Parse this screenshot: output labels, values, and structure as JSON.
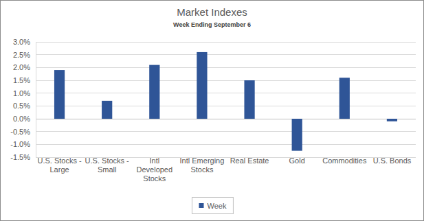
{
  "chart_data": {
    "type": "bar",
    "title": "Market Indexes",
    "subtitle": "Week Ending September 6",
    "categories": [
      "U.S. Stocks - Large",
      "U.S. Stocks - Small",
      "Intl Developed Stocks",
      "Intl Emerging Stocks",
      "Real Estate",
      "Gold",
      "Commodities",
      "U.S. Bonds"
    ],
    "series": [
      {
        "name": "Week",
        "color": "#2f5597",
        "values": [
          1.9,
          0.7,
          2.1,
          2.6,
          1.5,
          -1.25,
          1.6,
          -0.1
        ]
      }
    ],
    "ylim": [
      -1.5,
      3.0
    ],
    "yticks": [
      {
        "value": -1.5,
        "label": "-1.5%"
      },
      {
        "value": -1.0,
        "label": "-1.0%"
      },
      {
        "value": -0.5,
        "label": "-0.5%"
      },
      {
        "value": 0,
        "label": "0.0%"
      },
      {
        "value": 0.5,
        "label": "0.5%"
      },
      {
        "value": 1.0,
        "label": "1.0%"
      },
      {
        "value": 1.5,
        "label": "1.5%"
      },
      {
        "value": 2.0,
        "label": "2.0%"
      },
      {
        "value": 2.5,
        "label": "2.5%"
      },
      {
        "value": 3.0,
        "label": "3.0%"
      }
    ],
    "grid": true,
    "legend": "bottom"
  }
}
